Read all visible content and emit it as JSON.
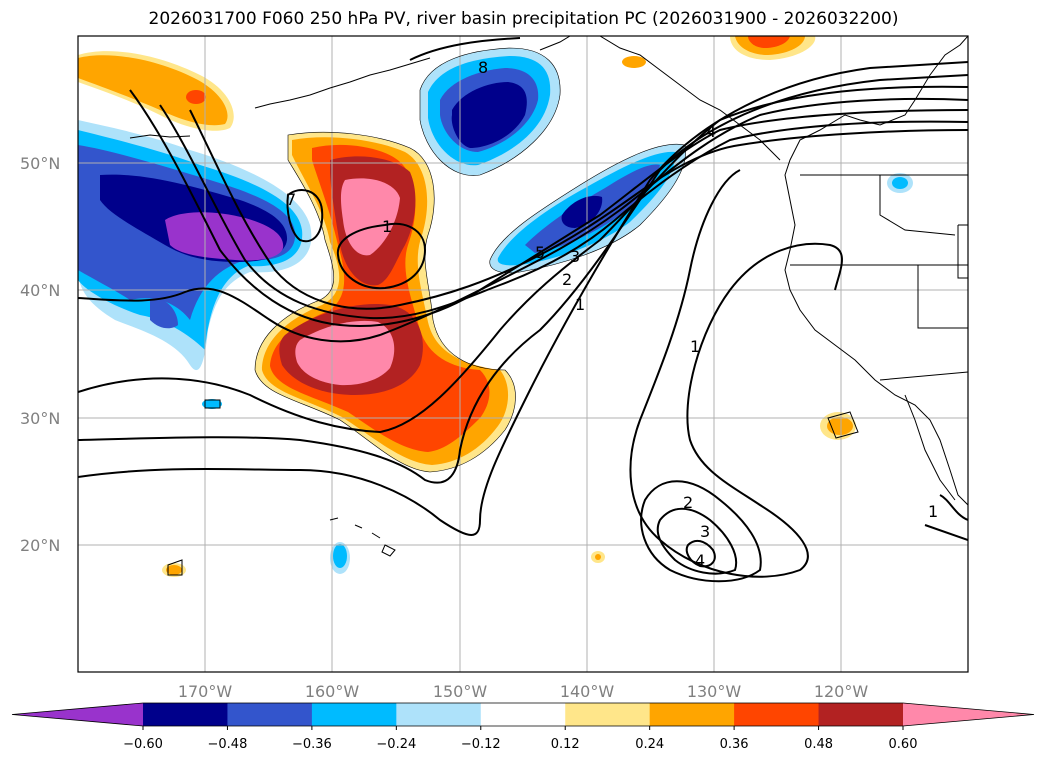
{
  "title": "2026031700 F060 250 hPa PV, river basin precipitation PC (2026031900 - 2026032200)",
  "map": {
    "lat_labels": [
      "50°N",
      "40°N",
      "30°N",
      "20°N"
    ],
    "lon_labels": [
      "170°W",
      "160°W",
      "150°W",
      "140°W",
      "130°W",
      "120°W"
    ],
    "contour_labels": [
      "8",
      "7",
      "1",
      "5",
      "3",
      "2",
      "1",
      "4",
      "1",
      "2",
      "3",
      "4",
      "1"
    ]
  },
  "colorbar": {
    "colors": [
      "#9933cc",
      "#00008b",
      "#3355cc",
      "#00bbff",
      "#aee2fa",
      "#ffffff",
      "#ffe68a",
      "#ffa500",
      "#ff4500",
      "#b22222",
      "#ff88aa"
    ],
    "ticks": [
      "−0.60",
      "−0.48",
      "−0.36",
      "−0.24",
      "−0.12",
      "0.12",
      "0.24",
      "0.36",
      "0.48",
      "0.60"
    ]
  }
}
